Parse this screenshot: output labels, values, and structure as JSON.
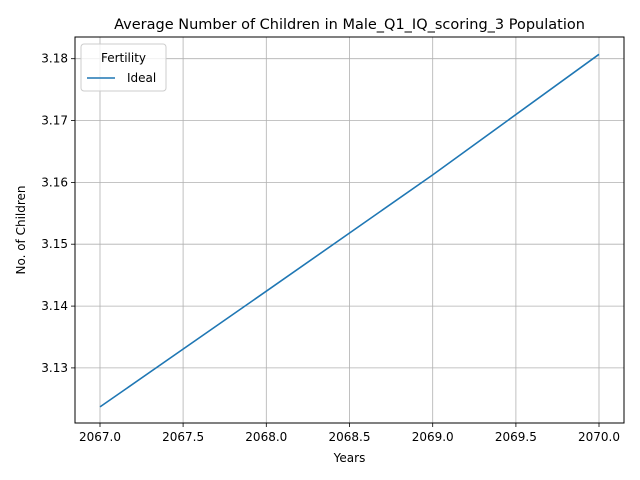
{
  "chart_data": {
    "type": "line",
    "title": "Average Number of Children in Male_Q1_IQ_scoring_3 Population",
    "xlabel": "Years",
    "ylabel": "No. of Children",
    "xlim": [
      2066.85,
      2070.15
    ],
    "ylim": [
      3.1211,
      3.1835
    ],
    "xticks": [
      2067.0,
      2067.5,
      2068.0,
      2068.5,
      2069.0,
      2069.5,
      2070.0
    ],
    "xtick_labels": [
      "2067.0",
      "2067.5",
      "2068.0",
      "2068.5",
      "2069.0",
      "2069.5",
      "2070.0"
    ],
    "yticks": [
      3.13,
      3.14,
      3.15,
      3.16,
      3.17,
      3.18
    ],
    "ytick_labels": [
      "3.13",
      "3.14",
      "3.15",
      "3.16",
      "3.17",
      "3.18"
    ],
    "grid": true,
    "legend": {
      "title": "Fertility",
      "placement": "top-left"
    },
    "series": [
      {
        "name": "Ideal",
        "color": "#1f77b4",
        "x": [
          2067,
          2068,
          2069,
          2070
        ],
        "y": [
          3.1237,
          3.1424,
          3.1612,
          3.1807
        ]
      }
    ]
  }
}
